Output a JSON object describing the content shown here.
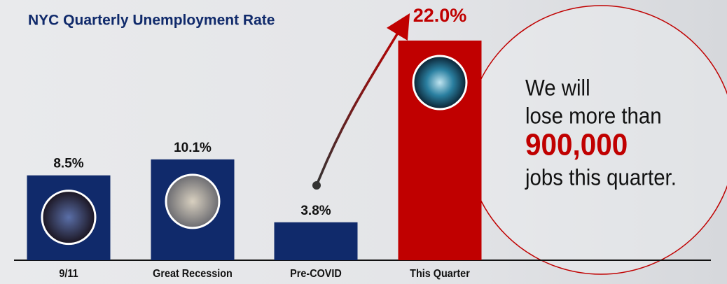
{
  "chart_data": {
    "type": "bar",
    "title": "NYC Quarterly Unemployment Rate",
    "categories": [
      "9/11",
      "Great Recession",
      "Pre-COVID",
      "This Quarter"
    ],
    "values": [
      8.5,
      10.1,
      3.8,
      22.0
    ],
    "value_labels": [
      "8.5%",
      "10.1%",
      "3.8%",
      "22.0%"
    ],
    "colors": [
      "#102a6b",
      "#102a6b",
      "#102a6b",
      "#c00000"
    ],
    "annotation": [
      "We will",
      "lose more than",
      "900,000",
      "jobs this quarter."
    ]
  }
}
